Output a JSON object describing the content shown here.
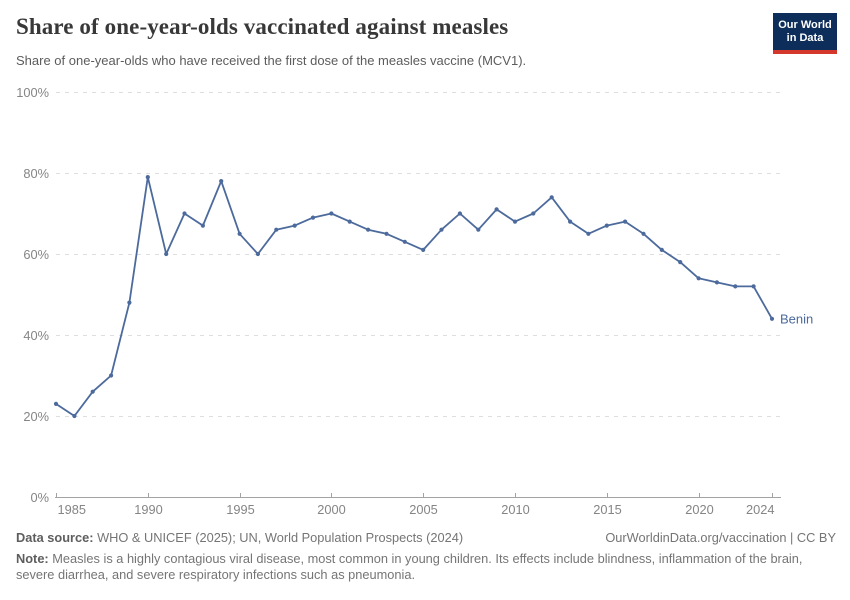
{
  "header": {
    "title": "Share of one-year-olds vaccinated against measles",
    "subtitle": "Share of one-year-olds who have received the first dose of the measles vaccine (MCV1).",
    "logo": {
      "line1": "Our World",
      "line2": "in Data",
      "bg_color": "#0d2e5a",
      "stripe_color": "#d4382d"
    }
  },
  "chart_data": {
    "type": "line",
    "title": "Share of one-year-olds vaccinated against measles",
    "xlabel": "",
    "ylabel": "",
    "xlim": [
      1985,
      2024
    ],
    "ylim": [
      0,
      100
    ],
    "grid": true,
    "legend_position": "end-of-line-label",
    "x_ticks": [
      {
        "value": 1985,
        "label": "1985"
      },
      {
        "value": 1990,
        "label": "1990"
      },
      {
        "value": 1995,
        "label": "1995"
      },
      {
        "value": 2000,
        "label": "2000"
      },
      {
        "value": 2005,
        "label": "2005"
      },
      {
        "value": 2010,
        "label": "2010"
      },
      {
        "value": 2015,
        "label": "2015"
      },
      {
        "value": 2020,
        "label": "2020"
      },
      {
        "value": 2024,
        "label": "2024"
      }
    ],
    "y_ticks": [
      {
        "value": 0,
        "label": "0%"
      },
      {
        "value": 20,
        "label": "20%"
      },
      {
        "value": 40,
        "label": "40%"
      },
      {
        "value": 60,
        "label": "60%"
      },
      {
        "value": 80,
        "label": "80%"
      },
      {
        "value": 100,
        "label": "100%"
      }
    ],
    "series": [
      {
        "name": "Benin",
        "color": "#4c6a9c",
        "x": [
          1985,
          1986,
          1987,
          1988,
          1989,
          1990,
          1991,
          1992,
          1993,
          1994,
          1995,
          1996,
          1997,
          1998,
          1999,
          2000,
          2001,
          2002,
          2003,
          2004,
          2005,
          2006,
          2007,
          2008,
          2009,
          2010,
          2011,
          2012,
          2013,
          2014,
          2015,
          2016,
          2017,
          2018,
          2019,
          2020,
          2021,
          2022,
          2023,
          2024
        ],
        "values": [
          23,
          20,
          26,
          30,
          48,
          79,
          60,
          70,
          67,
          78,
          65,
          60,
          66,
          67,
          69,
          70,
          68,
          66,
          65,
          63,
          61,
          66,
          70,
          66,
          71,
          68,
          70,
          74,
          68,
          65,
          67,
          68,
          65,
          61,
          58,
          54,
          53,
          52,
          52,
          44
        ]
      }
    ]
  },
  "footer": {
    "data_source_label": "Data source:",
    "data_source": "WHO & UNICEF (2025); UN, World Population Prospects (2024)",
    "credit": "OurWorldinData.org/vaccination | CC BY",
    "note_label": "Note:",
    "note": "Measles is a highly contagious viral disease, most common in young children. Its effects include blindness, inflammation of the brain, severe diarrhea, and severe respiratory infections such as pneumonia."
  }
}
